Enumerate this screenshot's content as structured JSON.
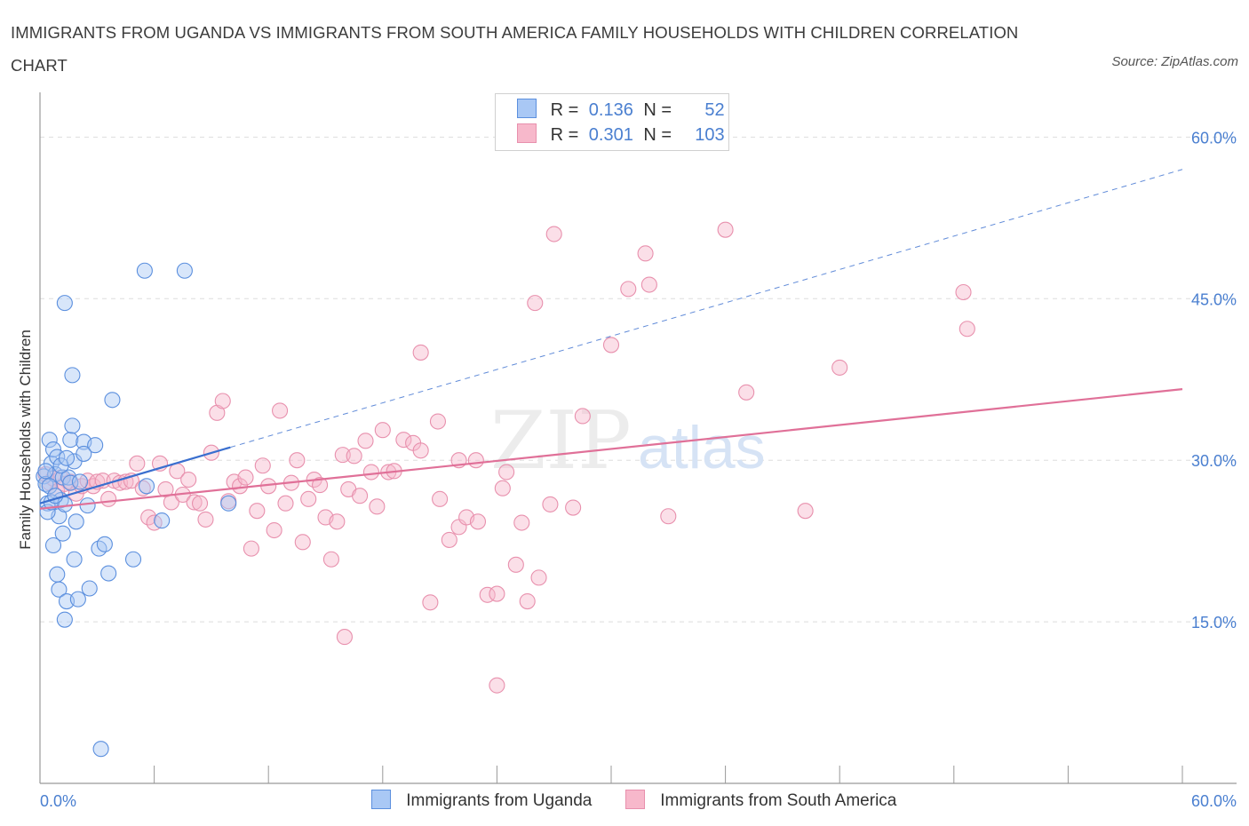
{
  "title": "IMMIGRANTS FROM UGANDA VS IMMIGRANTS FROM SOUTH AMERICA FAMILY HOUSEHOLDS WITH CHILDREN CORRELATION CHART",
  "source": "Source: ZipAtlas.com",
  "watermark": {
    "zip": "ZIP",
    "atlas": "atlas"
  },
  "legend": {
    "r_label": "R =",
    "n_label": "N =",
    "uganda": {
      "r": "0.136",
      "n": "52"
    },
    "south_america": {
      "r": "0.301",
      "n": "103"
    }
  },
  "bottom_legend": {
    "uganda": "Immigrants from Uganda",
    "south_america": "Immigrants from South America"
  },
  "colors": {
    "uganda_fill": "#a9c8f5",
    "uganda_stroke": "#5b8fde",
    "uganda_line": "#3a6fcf",
    "sa_fill": "#f7b8cb",
    "sa_stroke": "#e890ad",
    "sa_line": "#e07098",
    "tick_text": "#4a7fd0",
    "grid": "#dddddd"
  },
  "chart_data": {
    "type": "scatter",
    "title": "IMMIGRANTS FROM UGANDA VS IMMIGRANTS FROM SOUTH AMERICA FAMILY HOUSEHOLDS WITH CHILDREN CORRELATION CHART",
    "xlabel": "",
    "ylabel": "Family Households with Children",
    "xlim": [
      0,
      60
    ],
    "ylim": [
      0,
      63
    ],
    "x_tick_labels": [
      "0.0%",
      "60.0%"
    ],
    "y_ticks": [
      15,
      30,
      45,
      60
    ],
    "y_tick_labels": [
      "15.0%",
      "30.0%",
      "45.0%",
      "60.0%"
    ],
    "series": [
      {
        "name": "Immigrants from Uganda",
        "r": 0.136,
        "n": 52,
        "trend": {
          "x": [
            0,
            10
          ],
          "y": [
            26.0,
            31.2
          ],
          "style": "solid",
          "extended_to": [
            60,
            57.0
          ],
          "extended_style": "dashed"
        },
        "points": [
          [
            0.2,
            28.5
          ],
          [
            0.3,
            27.8
          ],
          [
            0.4,
            26.0
          ],
          [
            0.5,
            31.9
          ],
          [
            0.6,
            29.7
          ],
          [
            0.7,
            31.0
          ],
          [
            0.8,
            28.7
          ],
          [
            0.9,
            30.3
          ],
          [
            1.0,
            24.8
          ],
          [
            1.1,
            26.3
          ],
          [
            1.2,
            28.4
          ],
          [
            1.3,
            25.9
          ],
          [
            1.5,
            28.4
          ],
          [
            1.6,
            31.9
          ],
          [
            1.7,
            33.2
          ],
          [
            1.8,
            29.9
          ],
          [
            0.4,
            25.2
          ],
          [
            0.6,
            26.1
          ],
          [
            0.7,
            22.1
          ],
          [
            0.9,
            19.4
          ],
          [
            1.0,
            18.0
          ],
          [
            1.2,
            23.2
          ],
          [
            1.3,
            15.2
          ],
          [
            1.4,
            16.9
          ],
          [
            1.8,
            20.8
          ],
          [
            1.9,
            24.3
          ],
          [
            2.0,
            17.1
          ],
          [
            2.3,
            31.7
          ],
          [
            2.5,
            25.8
          ],
          [
            2.6,
            18.1
          ],
          [
            2.9,
            31.4
          ],
          [
            3.1,
            21.8
          ],
          [
            3.4,
            22.2
          ],
          [
            3.6,
            19.5
          ],
          [
            3.8,
            35.6
          ],
          [
            4.9,
            20.8
          ],
          [
            5.6,
            27.6
          ],
          [
            5.5,
            47.6
          ],
          [
            6.4,
            24.4
          ],
          [
            7.6,
            47.6
          ],
          [
            9.9,
            26.0
          ],
          [
            1.3,
            44.6
          ],
          [
            1.7,
            37.9
          ],
          [
            2.3,
            30.6
          ],
          [
            0.3,
            29.0
          ],
          [
            0.5,
            27.6
          ],
          [
            0.8,
            26.7
          ],
          [
            1.1,
            29.5
          ],
          [
            1.6,
            27.9
          ],
          [
            2.1,
            28.0
          ],
          [
            1.4,
            30.2
          ],
          [
            3.2,
            3.2
          ]
        ]
      },
      {
        "name": "Immigrants from South America",
        "r": 0.301,
        "n": 103,
        "trend": {
          "x": [
            0,
            60
          ],
          "y": [
            25.5,
            36.6
          ],
          "style": "solid"
        },
        "points": [
          [
            0.3,
            28.7
          ],
          [
            0.5,
            27.9
          ],
          [
            0.7,
            28.3
          ],
          [
            0.9,
            27.1
          ],
          [
            1.1,
            28.4
          ],
          [
            1.3,
            27.8
          ],
          [
            1.6,
            28.0
          ],
          [
            1.9,
            26.9
          ],
          [
            2.2,
            27.6
          ],
          [
            2.5,
            28.1
          ],
          [
            2.8,
            27.6
          ],
          [
            3.0,
            28.0
          ],
          [
            3.3,
            28.1
          ],
          [
            3.6,
            26.4
          ],
          [
            3.9,
            28.1
          ],
          [
            4.2,
            27.9
          ],
          [
            4.5,
            28.0
          ],
          [
            4.8,
            28.1
          ],
          [
            5.1,
            29.7
          ],
          [
            5.4,
            27.4
          ],
          [
            5.7,
            24.7
          ],
          [
            6.0,
            24.2
          ],
          [
            6.3,
            29.7
          ],
          [
            6.6,
            27.3
          ],
          [
            6.9,
            26.1
          ],
          [
            7.2,
            29.0
          ],
          [
            7.5,
            26.8
          ],
          [
            7.8,
            28.2
          ],
          [
            8.1,
            26.1
          ],
          [
            8.4,
            26.0
          ],
          [
            8.7,
            24.5
          ],
          [
            9.0,
            30.7
          ],
          [
            9.3,
            34.4
          ],
          [
            9.6,
            35.5
          ],
          [
            9.9,
            26.2
          ],
          [
            10.2,
            28.0
          ],
          [
            10.5,
            27.6
          ],
          [
            10.8,
            28.4
          ],
          [
            11.1,
            21.8
          ],
          [
            11.4,
            25.3
          ],
          [
            11.7,
            29.5
          ],
          [
            12.0,
            27.6
          ],
          [
            12.3,
            23.5
          ],
          [
            12.6,
            34.6
          ],
          [
            12.9,
            26.0
          ],
          [
            13.2,
            27.9
          ],
          [
            13.5,
            30.0
          ],
          [
            13.8,
            22.4
          ],
          [
            14.1,
            26.4
          ],
          [
            14.4,
            28.2
          ],
          [
            14.7,
            27.7
          ],
          [
            15.0,
            24.7
          ],
          [
            15.3,
            20.8
          ],
          [
            15.6,
            24.3
          ],
          [
            15.9,
            30.5
          ],
          [
            16.2,
            27.3
          ],
          [
            16.5,
            30.4
          ],
          [
            16.8,
            26.7
          ],
          [
            17.1,
            31.8
          ],
          [
            17.4,
            28.9
          ],
          [
            17.7,
            25.7
          ],
          [
            18.0,
            32.8
          ],
          [
            18.3,
            28.9
          ],
          [
            18.6,
            29.0
          ],
          [
            19.1,
            31.9
          ],
          [
            19.6,
            31.6
          ],
          [
            20.0,
            30.9
          ],
          [
            20.5,
            16.8
          ],
          [
            21.0,
            26.4
          ],
          [
            21.5,
            22.6
          ],
          [
            22.0,
            23.8
          ],
          [
            22.4,
            24.7
          ],
          [
            23.0,
            24.3
          ],
          [
            23.5,
            17.5
          ],
          [
            24.0,
            17.6
          ],
          [
            24.3,
            27.4
          ],
          [
            25.0,
            20.3
          ],
          [
            25.6,
            16.9
          ],
          [
            26.2,
            19.1
          ],
          [
            26.8,
            25.9
          ],
          [
            28.0,
            25.6
          ],
          [
            30.0,
            40.7
          ],
          [
            30.9,
            45.9
          ],
          [
            31.8,
            49.2
          ],
          [
            32.0,
            46.3
          ],
          [
            33.0,
            24.8
          ],
          [
            36.0,
            51.4
          ],
          [
            37.1,
            36.3
          ],
          [
            40.2,
            25.3
          ],
          [
            42.0,
            38.6
          ],
          [
            48.5,
            45.6
          ],
          [
            48.7,
            42.2
          ],
          [
            20.9,
            33.6
          ],
          [
            22.0,
            30.0
          ],
          [
            22.9,
            30.0
          ],
          [
            24.5,
            28.9
          ],
          [
            25.3,
            24.2
          ],
          [
            26.0,
            44.6
          ],
          [
            27.0,
            51.0
          ],
          [
            28.5,
            34.1
          ],
          [
            16.0,
            13.6
          ],
          [
            20.0,
            40.0
          ],
          [
            24.0,
            9.1
          ]
        ]
      }
    ]
  }
}
